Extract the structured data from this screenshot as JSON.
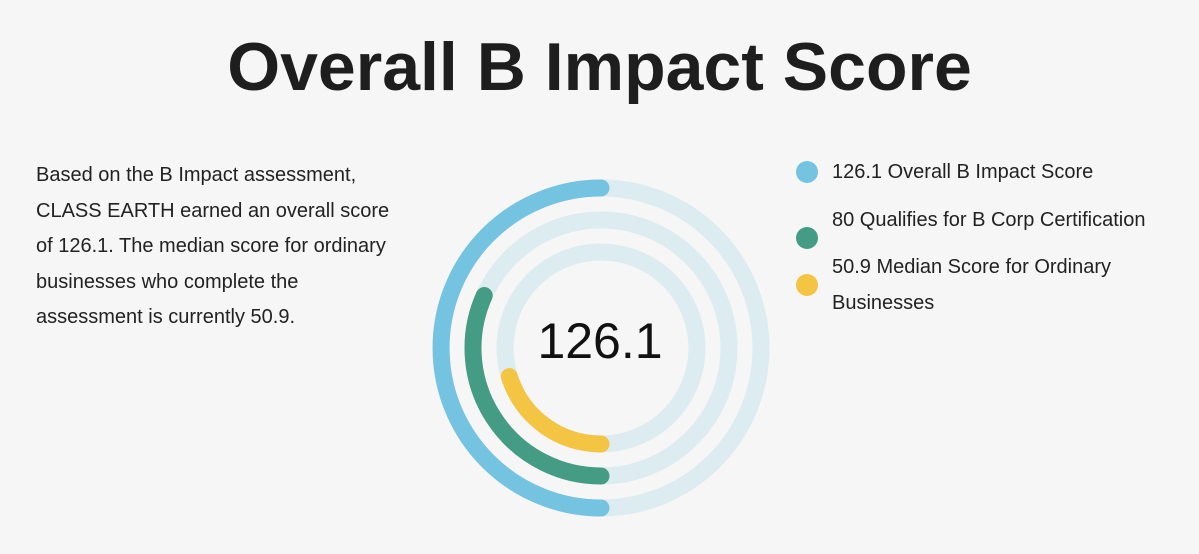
{
  "chart_data": {
    "type": "radial-bar",
    "title": "Overall B Impact Score",
    "center_label": "126.1",
    "full_circle_value": 252.2,
    "track_color": "#ddecf1",
    "series": [
      {
        "name": "Overall B Impact Score",
        "value": 126.1,
        "color": "#74c3e0",
        "legend": "126.1 Overall B Impact Score"
      },
      {
        "name": "Qualifies for B Corp Certification",
        "value": 80,
        "color": "#459c84",
        "legend": "80 Qualifies for B Corp Certification"
      },
      {
        "name": "Median Score for Ordinary Businesses",
        "value": 50.9,
        "color": "#f4c443",
        "legend": "50.9 Median Score for Ordinary Businesses"
      }
    ]
  },
  "description": "Based on the B Impact assessment, CLASS EARTH earned an overall score of 126.1. The median score for ordinary businesses who complete the assessment is currently 50.9."
}
